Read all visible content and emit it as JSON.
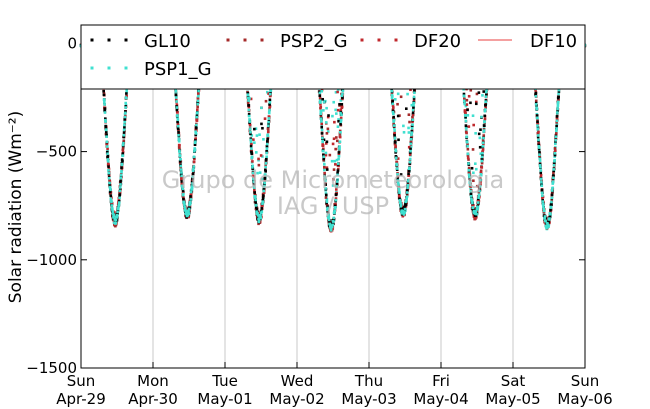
{
  "chart_data": {
    "type": "line",
    "ylabel": "Solar radiation (Wm⁻²)",
    "ylabel_math": "(Wm⁻²)",
    "ylim": [
      -1500,
      0
    ],
    "yticks": [
      0,
      -500,
      -1000,
      -1500
    ],
    "ytick_labels": [
      "0",
      "−500",
      "−1000",
      "−1500"
    ],
    "xlim": [
      "2012-04-29",
      "2012-05-06"
    ],
    "xticks": [
      {
        "day": "Sun",
        "date": "Apr-29"
      },
      {
        "day": "Mon",
        "date": "Apr-30"
      },
      {
        "day": "Tue",
        "date": "May-01"
      },
      {
        "day": "Wed",
        "date": "May-02"
      },
      {
        "day": "Thu",
        "date": "May-03"
      },
      {
        "day": "Fri",
        "date": "May-04"
      },
      {
        "day": "Sat",
        "date": "May-05"
      },
      {
        "day": "Sun",
        "date": "May-06"
      }
    ],
    "grid": "vertical",
    "legend_position": "top",
    "watermark": [
      "Grupo de Micrometeorologia",
      "IAG / USP"
    ],
    "daily_peak_minimum": [
      {
        "date": "Apr-29",
        "value": -820
      },
      {
        "date": "Apr-30",
        "value": -790
      },
      {
        "date": "May-01",
        "value": -810
      },
      {
        "date": "May-02",
        "value": -850
      },
      {
        "date": "May-03",
        "value": -780
      },
      {
        "date": "May-04",
        "value": -790
      },
      {
        "date": "May-05",
        "value": -840
      }
    ],
    "series": [
      {
        "name": "GL10",
        "color": "#000000",
        "style": "dotted-markers"
      },
      {
        "name": "PSP2_G",
        "color": "#a52a2a",
        "style": "dotted-markers"
      },
      {
        "name": "DF20",
        "color": "#c0282d",
        "style": "dotted-markers"
      },
      {
        "name": "DF10",
        "color": "#f08080",
        "style": "line"
      },
      {
        "name": "PSP1_G",
        "color": "#40e0d0",
        "style": "dotted-markers"
      }
    ]
  }
}
